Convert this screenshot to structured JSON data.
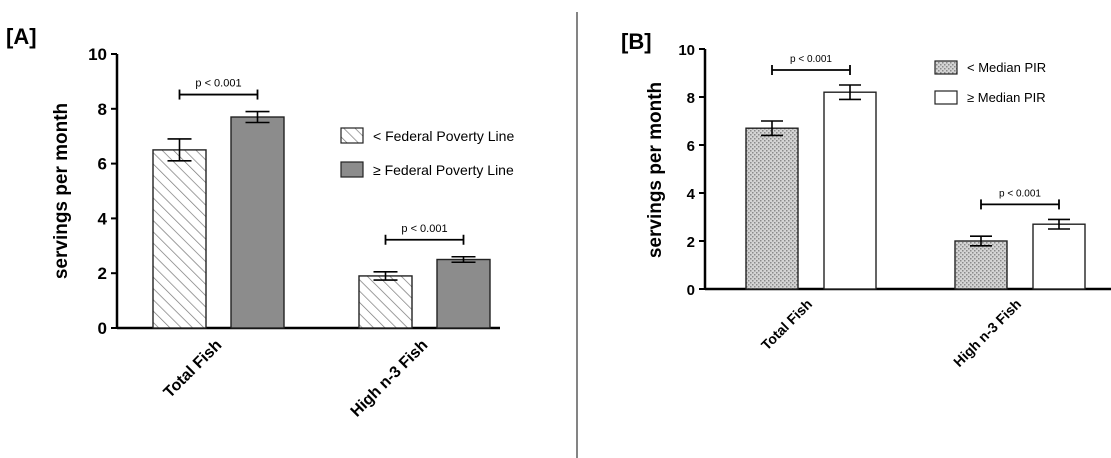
{
  "colors": {
    "below_fill_a": "#ffffff",
    "hatch_a": "#777777",
    "above_fill_a": "#8c8c8c",
    "below_fill_b": "#c4c4c4",
    "above_fill_b": "#ffffff",
    "stroke": "#222222",
    "divider": "#333333"
  },
  "chart_data": [
    {
      "type": "bar",
      "panel_label": "[A]",
      "categories": [
        "Total Fish",
        "High n-3 Fish"
      ],
      "ylabel": "servings per month",
      "xlabel": "",
      "ylim": [
        0,
        10
      ],
      "yticks": [
        "0",
        "2",
        "4",
        "6",
        "8",
        "10"
      ],
      "series": [
        {
          "name": "< Federal Poverty Line",
          "values": [
            6.5,
            1.9
          ],
          "errors": [
            0.4,
            0.15
          ],
          "pattern": "hatched"
        },
        {
          "name": "≥ Federal Poverty Line",
          "values": [
            7.7,
            2.5
          ],
          "errors": [
            0.2,
            0.1
          ],
          "pattern": "solid-gray"
        }
      ],
      "annotations": [
        "p < 0.001",
        "p < 0.001"
      ],
      "legend_position": "right"
    },
    {
      "type": "bar",
      "panel_label": "[B]",
      "categories": [
        "Total Fish",
        "High n-3 Fish"
      ],
      "ylabel": "servings per month",
      "xlabel": "",
      "ylim": [
        0,
        10
      ],
      "yticks": [
        "0",
        "2",
        "4",
        "6",
        "8",
        "10"
      ],
      "series": [
        {
          "name": "< Median PIR",
          "values": [
            6.7,
            2.0
          ],
          "errors": [
            0.3,
            0.2
          ],
          "pattern": "stippled-gray"
        },
        {
          "name": "≥ Median PIR",
          "values": [
            8.2,
            2.7
          ],
          "errors": [
            0.3,
            0.2
          ],
          "pattern": "white"
        }
      ],
      "annotations": [
        "p < 0.001",
        "p < 0.001"
      ],
      "legend_position": "top-right"
    }
  ]
}
